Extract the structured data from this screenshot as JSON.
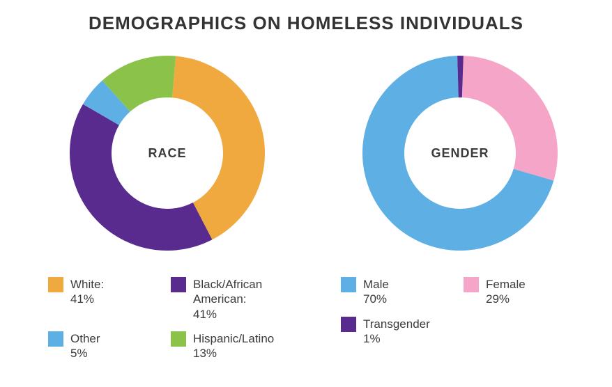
{
  "title": "DEMOGRAPHICS ON HOMELESS INDIVIDUALS",
  "title_fontsize": 26,
  "title_color": "#333336",
  "body_text_color": "#3b3b3d",
  "legend_fontsize": 17,
  "center_label_fontsize": 18,
  "background_color": "#ffffff",
  "donut": {
    "outer_radius": 140,
    "inner_radius": 80
  },
  "charts": {
    "race": {
      "type": "donut",
      "center_label": "RACE",
      "start_angle_deg": 5,
      "slices": [
        {
          "key": "white",
          "label": "White:",
          "value_text": "41%",
          "value": 41,
          "color": "#efa93e"
        },
        {
          "key": "black",
          "label": "Black/African American:",
          "value_text": "41%",
          "value": 41,
          "color": "#5a2b8f"
        },
        {
          "key": "other",
          "label": "Other",
          "value_text": "5%",
          "value": 5,
          "color": "#5eb0e4"
        },
        {
          "key": "hispanic",
          "label": "Hispanic/Latino",
          "value_text": "13%",
          "value": 13,
          "color": "#8bc34a"
        }
      ],
      "legend_order": [
        "white",
        "black",
        "other",
        "hispanic"
      ]
    },
    "gender": {
      "type": "donut",
      "center_label": "GENDER",
      "start_angle_deg": 2,
      "slices": [
        {
          "key": "female",
          "label": "Female",
          "value_text": "29%",
          "value": 29,
          "color": "#f5a6c8"
        },
        {
          "key": "male",
          "label": "Male",
          "value_text": "70%",
          "value": 70,
          "color": "#5eb0e4"
        },
        {
          "key": "transgender",
          "label": "Transgender",
          "value_text": "1%",
          "value": 1,
          "color": "#5a2b8f"
        }
      ],
      "legend_order": [
        "male",
        "female",
        "transgender"
      ]
    }
  }
}
